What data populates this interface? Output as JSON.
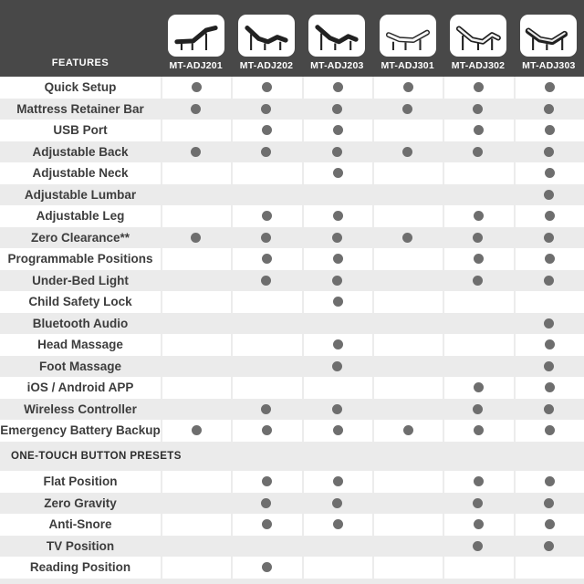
{
  "colors": {
    "header_bg": "#484848",
    "stripe_gray": "#ebebeb",
    "row_white": "#ffffff",
    "dot_gray": "#6e6e6e",
    "label_text": "#3d3d3d",
    "header_text": "#ffffff"
  },
  "header": {
    "icon_names": [
      "bed-dark-head-raised-icon",
      "bed-dark-head-foot-raised-icon",
      "bed-dark-head-foot-raised-icon",
      "bed-light-gentle-curve-icon",
      "bed-light-head-foot-raised-icon",
      "bed-mixed-head-foot-raised-icon"
    ]
  },
  "chart_data": {
    "type": "table",
    "columns": [
      "FEATURES",
      "MT-ADJ201",
      "MT-ADJ202",
      "MT-ADJ203",
      "MT-ADJ301",
      "MT-ADJ302",
      "MT-ADJ303"
    ],
    "dot_meaning": "feature included",
    "sections": [
      {
        "title": "FEATURES",
        "show_title": false,
        "rows": [
          {
            "feature": "Quick Setup",
            "values": [
              1,
              1,
              1,
              1,
              1,
              1
            ]
          },
          {
            "feature": "Mattress Retainer Bar",
            "values": [
              1,
              1,
              1,
              1,
              1,
              1
            ]
          },
          {
            "feature": "USB Port",
            "values": [
              0,
              1,
              1,
              0,
              1,
              1
            ]
          },
          {
            "feature": "Adjustable Back",
            "values": [
              1,
              1,
              1,
              1,
              1,
              1
            ]
          },
          {
            "feature": "Adjustable Neck",
            "values": [
              0,
              0,
              1,
              0,
              0,
              1
            ]
          },
          {
            "feature": "Adjustable Lumbar",
            "values": [
              0,
              0,
              0,
              0,
              0,
              1
            ]
          },
          {
            "feature": "Adjustable Leg",
            "values": [
              0,
              1,
              1,
              0,
              1,
              1
            ]
          },
          {
            "feature": "Zero Clearance**",
            "values": [
              1,
              1,
              1,
              1,
              1,
              1
            ]
          },
          {
            "feature": "Programmable Positions",
            "values": [
              0,
              1,
              1,
              0,
              1,
              1
            ]
          },
          {
            "feature": "Under-Bed Light",
            "values": [
              0,
              1,
              1,
              0,
              1,
              1
            ]
          },
          {
            "feature": "Child Safety Lock",
            "values": [
              0,
              0,
              1,
              0,
              0,
              0
            ]
          },
          {
            "feature": "Bluetooth Audio",
            "values": [
              0,
              0,
              0,
              0,
              0,
              1
            ]
          },
          {
            "feature": "Head Massage",
            "values": [
              0,
              0,
              1,
              0,
              0,
              1
            ]
          },
          {
            "feature": "Foot Massage",
            "values": [
              0,
              0,
              1,
              0,
              0,
              1
            ]
          },
          {
            "feature": "iOS / Android APP",
            "values": [
              0,
              0,
              0,
              0,
              1,
              1
            ]
          },
          {
            "feature": "Wireless Controller",
            "values": [
              0,
              1,
              1,
              0,
              1,
              1
            ]
          },
          {
            "feature": "Emergency Battery Backup",
            "values": [
              1,
              1,
              1,
              1,
              1,
              1
            ]
          }
        ]
      },
      {
        "title": "ONE-TOUCH BUTTON PRESETS",
        "show_title": true,
        "rows": [
          {
            "feature": "Flat Position",
            "values": [
              0,
              1,
              1,
              0,
              1,
              1
            ]
          },
          {
            "feature": "Zero Gravity",
            "values": [
              0,
              1,
              1,
              0,
              1,
              1
            ]
          },
          {
            "feature": "Anti-Snore",
            "values": [
              0,
              1,
              1,
              0,
              1,
              1
            ]
          },
          {
            "feature": "TV Position",
            "values": [
              0,
              0,
              0,
              0,
              1,
              1
            ]
          },
          {
            "feature": "Reading Position",
            "values": [
              0,
              1,
              0,
              0,
              0,
              0
            ]
          }
        ]
      }
    ]
  }
}
